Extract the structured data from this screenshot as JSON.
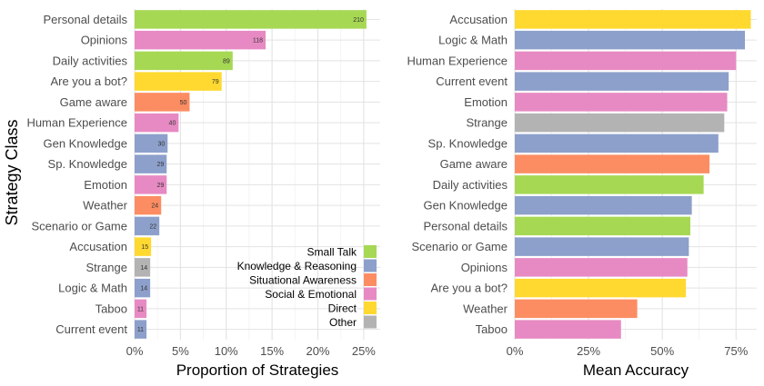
{
  "ylabel": "Strategy Class",
  "legend": {
    "title": "",
    "items": [
      {
        "name": "Small Talk",
        "color": "#a6d854"
      },
      {
        "name": "Knowledge & Reasoning",
        "color": "#8da0cb"
      },
      {
        "name": "Situational Awareness",
        "color": "#fc8d62"
      },
      {
        "name": "Social & Emotional",
        "color": "#e78ac3"
      },
      {
        "name": "Direct",
        "color": "#ffd92f"
      },
      {
        "name": "Other",
        "color": "#b3b3b3"
      }
    ]
  },
  "chart_data": [
    {
      "type": "bar",
      "orientation": "horizontal",
      "title": "",
      "xlabel": "Proportion of Strategies",
      "ylabel": "Strategy Class",
      "xlim": [
        0,
        0.268
      ],
      "xticks": [
        0,
        0.05,
        0.1,
        0.15,
        0.2,
        0.25
      ],
      "xtick_labels": [
        "0%",
        "5%",
        "10%",
        "15%",
        "20%",
        "25%"
      ],
      "grid": true,
      "legend_position": "bottom-right",
      "categories": [
        "Personal details",
        "Opinions",
        "Daily activities",
        "Are you a bot?",
        "Game aware",
        "Human Experience",
        "Gen Knowledge",
        "Sp. Knowledge",
        "Emotion",
        "Weather",
        "Scenario or Game",
        "Accusation",
        "Strange",
        "Logic & Math",
        "Taboo",
        "Current event"
      ],
      "values": [
        0.253,
        0.143,
        0.107,
        0.095,
        0.06,
        0.048,
        0.036,
        0.035,
        0.035,
        0.029,
        0.027,
        0.018,
        0.017,
        0.017,
        0.013,
        0.013
      ],
      "counts": [
        "210",
        "118",
        "89",
        "79",
        "50",
        "40",
        "30",
        "29",
        "29",
        "24",
        "22",
        "15",
        "14",
        "14",
        "11",
        "11"
      ],
      "groups": [
        "Small Talk",
        "Social & Emotional",
        "Small Talk",
        "Direct",
        "Situational Awareness",
        "Social & Emotional",
        "Knowledge & Reasoning",
        "Knowledge & Reasoning",
        "Social & Emotional",
        "Situational Awareness",
        "Knowledge & Reasoning",
        "Direct",
        "Other",
        "Knowledge & Reasoning",
        "Social & Emotional",
        "Knowledge & Reasoning"
      ]
    },
    {
      "type": "bar",
      "orientation": "horizontal",
      "title": "",
      "xlabel": "Mean Accuracy",
      "ylabel": "",
      "xlim": [
        0,
        0.82
      ],
      "xticks": [
        0,
        0.25,
        0.5,
        0.75
      ],
      "xtick_labels": [
        "0%",
        "25%",
        "50%",
        "75%"
      ],
      "grid": true,
      "categories": [
        "Accusation",
        "Logic & Math",
        "Human Experience",
        "Current event",
        "Emotion",
        "Strange",
        "Sp. Knowledge",
        "Game aware",
        "Daily activities",
        "Gen Knowledge",
        "Personal details",
        "Scenario or Game",
        "Opinions",
        "Are you a bot?",
        "Weather",
        "Taboo"
      ],
      "values": [
        0.8,
        0.78,
        0.75,
        0.725,
        0.72,
        0.71,
        0.69,
        0.66,
        0.64,
        0.6,
        0.595,
        0.59,
        0.585,
        0.58,
        0.415,
        0.36
      ],
      "groups": [
        "Direct",
        "Knowledge & Reasoning",
        "Social & Emotional",
        "Knowledge & Reasoning",
        "Social & Emotional",
        "Other",
        "Knowledge & Reasoning",
        "Situational Awareness",
        "Small Talk",
        "Knowledge & Reasoning",
        "Small Talk",
        "Knowledge & Reasoning",
        "Social & Emotional",
        "Direct",
        "Situational Awareness",
        "Social & Emotional"
      ]
    }
  ]
}
